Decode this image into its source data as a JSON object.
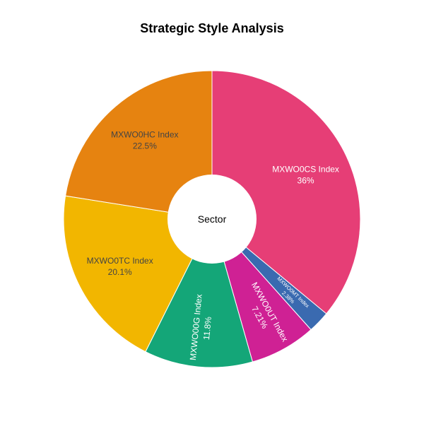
{
  "chart_data": {
    "type": "pie",
    "title": "Strategic Style Analysis",
    "hole_label": "Sector",
    "slices": [
      {
        "label": "MXWO0CS Index",
        "value": 36,
        "value_text": "36%",
        "color": "#e63e76",
        "text_color": "#ffffff",
        "orient": "h",
        "font": 12
      },
      {
        "label": "MXWO0MT Index",
        "value": 2.38,
        "value_text": "2.38%",
        "color": "#3a6ab0",
        "text_color": "#ffffff",
        "orient": "r",
        "font": 7.5
      },
      {
        "label": "MXWO0UT Index",
        "value": 7.21,
        "value_text": "7.21%",
        "color": "#cf2194",
        "text_color": "#ffffff",
        "orient": "r",
        "font": 12
      },
      {
        "label": "MXWO00G Index",
        "value": 11.8,
        "value_text": "11.8%",
        "color": "#14a678",
        "text_color": "#ffffff",
        "orient": "r",
        "font": 12
      },
      {
        "label": "MXWO0TC Index",
        "value": 20.1,
        "value_text": "20.1%",
        "color": "#f2b600",
        "text_color": "#444444",
        "orient": "h",
        "font": 12
      },
      {
        "label": "MXWO0HC Index",
        "value": 22.5,
        "value_text": "22.5%",
        "color": "#e68310",
        "text_color": "#444444",
        "orient": "h",
        "font": 12
      }
    ],
    "legend": "none"
  }
}
